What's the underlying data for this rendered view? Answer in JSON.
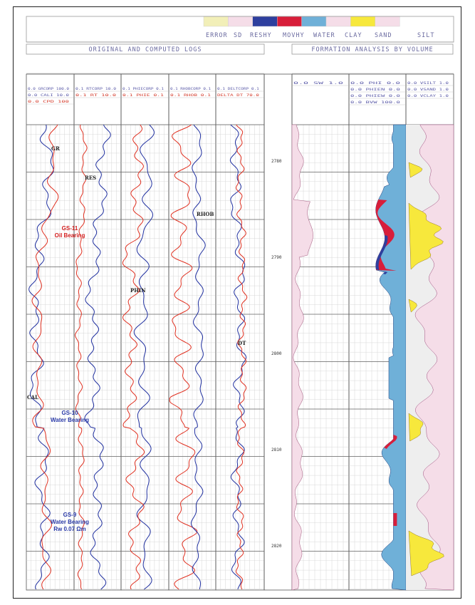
{
  "legend": {
    "labels": [
      "ERROR",
      "SD",
      "RESHY",
      "MOVHY",
      "WATER",
      "CLAY",
      "SAND",
      "SILT"
    ],
    "colors": [
      "#f2efb8",
      "#f5dde8",
      "#2e3f9e",
      "#d81e3a",
      "#6fb0d8",
      "#f5dde8",
      "#f7e83c",
      "#f5dde8"
    ]
  },
  "headers": {
    "left_title": "ORIGINAL AND COMPUTED LOGS",
    "right_title": "FORMATION ANALYSIS BY VOLUME"
  },
  "track_headers": [
    [
      "0.0 GRCORP 100.0",
      "0.0 CALI 10.0",
      "0.0 CPD 100"
    ],
    [
      "0.1 RTCORP 10.0",
      "0.1 RT 10.0"
    ],
    [
      "0.1 PHIECORP 0.1",
      "0.1 PHIE 0.1"
    ],
    [
      "0.1 RHOBCORP 0.1",
      "0.1 RHOB 0.1"
    ],
    [
      "0.1 DELTCORP 0.1",
      "DELTA DT 70.0"
    ],
    [
      "0.0 SW 1.0"
    ],
    [
      "0.0 PHI 0.0",
      "0.0 PHIEN 0.0",
      "0.0 PHIEW 0.0",
      "0.0 BVW 100.0"
    ],
    [
      "0.0 VSILT 1.0",
      "0.0 VSAND 1.0",
      "0.0 VCLAY 1.0"
    ]
  ],
  "depth_labels": [
    "2780",
    "2790",
    "2800",
    "2810",
    "2820"
  ],
  "annotations": [
    "GR",
    "RES",
    "RHOB",
    "PHIN",
    "DT",
    "CAL"
  ],
  "zones": [
    {
      "name": "GS-11",
      "note": "Oil Bearing",
      "color": "#d42020"
    },
    {
      "name": "GS-10",
      "note": "Water Bearing",
      "color": "#2a3aa8"
    },
    {
      "name": "GS-9",
      "note": "Water Bearing",
      "note2": "Rw 0.07 Ωm",
      "color": "#2a3aa8"
    }
  ],
  "chart_data": {
    "type": "line",
    "title": "",
    "depth_range": [
      2772,
      2832
    ],
    "depth_unit": "",
    "colors": {
      "blue_curve": "#2030a0",
      "red_curve": "#e03020",
      "water": "#6fb0d8",
      "oil": "#d81e3a",
      "gas": "#2e3f9e",
      "sand": "#f7e83c",
      "clay": "#f5dde8"
    }
  }
}
